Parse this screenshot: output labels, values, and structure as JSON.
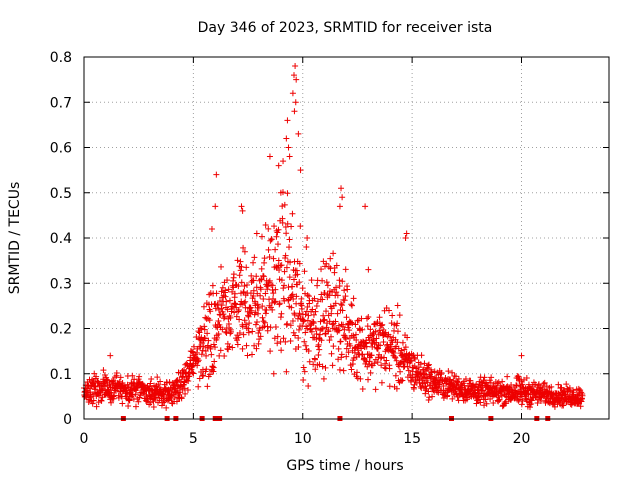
{
  "chart_data": {
    "type": "scatter",
    "title": "Day 346 of 2023, SRMTID for receiver ista",
    "xlabel": "GPS time / hours",
    "ylabel": "SRMTID / TECUs",
    "xlim": [
      0,
      24
    ],
    "ylim": [
      0,
      0.8
    ],
    "xticks": [
      "0",
      "5",
      "10",
      "15",
      "20"
    ],
    "xtick_values": [
      0,
      5,
      10,
      15,
      20
    ],
    "yticks": [
      "0",
      "0.1",
      "0.2",
      "0.3",
      "0.4",
      "0.5",
      "0.6",
      "0.7",
      "0.8"
    ],
    "ytick_values": [
      0,
      0.1,
      0.2,
      0.3,
      0.4,
      0.5,
      0.6,
      0.7,
      0.8
    ],
    "grid": true,
    "marker": "+",
    "color": "#ee0000",
    "envelope": {
      "hours": [
        0,
        1,
        2,
        3,
        4,
        4.8,
        5.3,
        5.8,
        6.3,
        6.8,
        7.3,
        7.8,
        8.3,
        8.8,
        9.3,
        9.7,
        10.2,
        10.8,
        11.4,
        11.8,
        12.3,
        12.8,
        13.3,
        13.8,
        14.3,
        14.8,
        15.3,
        16,
        17,
        18,
        19,
        20,
        21,
        22,
        22.8
      ],
      "median": [
        0.06,
        0.07,
        0.065,
        0.06,
        0.055,
        0.1,
        0.15,
        0.2,
        0.22,
        0.25,
        0.26,
        0.25,
        0.28,
        0.3,
        0.32,
        0.25,
        0.22,
        0.22,
        0.25,
        0.22,
        0.18,
        0.16,
        0.16,
        0.17,
        0.15,
        0.12,
        0.1,
        0.08,
        0.07,
        0.06,
        0.06,
        0.06,
        0.055,
        0.05,
        0.05
      ],
      "spread": [
        0.03,
        0.03,
        0.03,
        0.025,
        0.025,
        0.03,
        0.07,
        0.1,
        0.1,
        0.1,
        0.11,
        0.11,
        0.13,
        0.15,
        0.17,
        0.15,
        0.12,
        0.1,
        0.11,
        0.1,
        0.08,
        0.07,
        0.07,
        0.08,
        0.08,
        0.05,
        0.04,
        0.03,
        0.025,
        0.025,
        0.025,
        0.03,
        0.02,
        0.02,
        0.02
      ]
    },
    "peaks": [
      {
        "x": 9.65,
        "y": 0.78
      },
      {
        "x": 9.6,
        "y": 0.76
      },
      {
        "x": 9.7,
        "y": 0.75
      },
      {
        "x": 9.55,
        "y": 0.72
      },
      {
        "x": 9.68,
        "y": 0.7
      },
      {
        "x": 9.62,
        "y": 0.68
      },
      {
        "x": 9.3,
        "y": 0.66
      },
      {
        "x": 9.25,
        "y": 0.62
      },
      {
        "x": 9.35,
        "y": 0.6
      },
      {
        "x": 9.4,
        "y": 0.58
      },
      {
        "x": 9.1,
        "y": 0.57
      },
      {
        "x": 8.9,
        "y": 0.56
      },
      {
        "x": 8.5,
        "y": 0.58
      },
      {
        "x": 6.05,
        "y": 0.54
      },
      {
        "x": 11.75,
        "y": 0.51
      },
      {
        "x": 11.8,
        "y": 0.49
      },
      {
        "x": 11.7,
        "y": 0.47
      },
      {
        "x": 6.0,
        "y": 0.47
      },
      {
        "x": 12.85,
        "y": 0.47
      },
      {
        "x": 7.2,
        "y": 0.47
      },
      {
        "x": 7.25,
        "y": 0.46
      },
      {
        "x": 14.75,
        "y": 0.41
      },
      {
        "x": 14.7,
        "y": 0.4
      },
      {
        "x": 5.85,
        "y": 0.42
      },
      {
        "x": 9.8,
        "y": 0.63
      },
      {
        "x": 9.9,
        "y": 0.55
      },
      {
        "x": 9.0,
        "y": 0.5
      },
      {
        "x": 13.0,
        "y": 0.33
      },
      {
        "x": 7.9,
        "y": 0.41
      },
      {
        "x": 10.2,
        "y": 0.4
      },
      {
        "x": 20.0,
        "y": 0.14
      },
      {
        "x": 5.0,
        "y": 0.14
      },
      {
        "x": 1.2,
        "y": 0.14
      }
    ],
    "rug_hours": [
      1.8,
      3.8,
      4.2,
      5.4,
      6.0,
      6.2,
      11.7,
      16.8,
      18.6,
      20.7,
      21.2
    ]
  }
}
